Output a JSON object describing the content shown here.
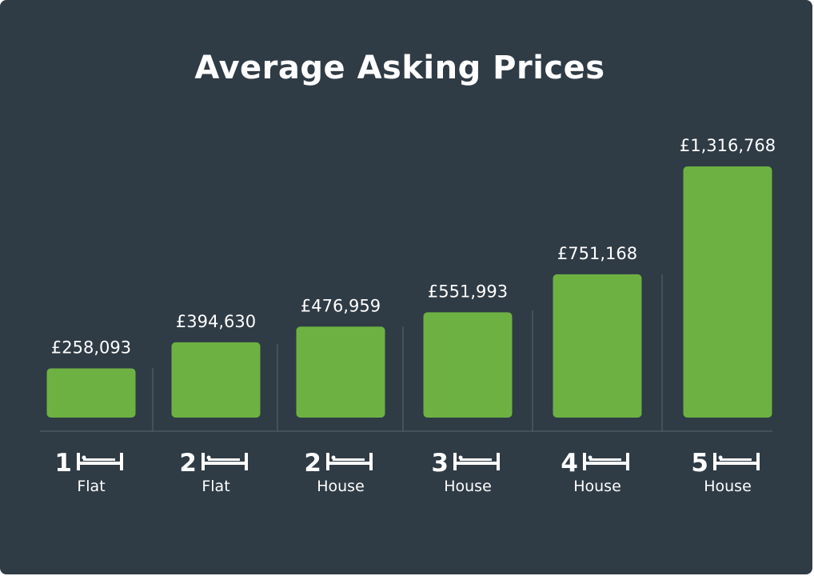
{
  "title": "Average Asking Prices",
  "colors": {
    "background": "#2f3b45",
    "bar": "#6db143",
    "divider": "#5a6670",
    "text": "#ffffff"
  },
  "icon": "bed-icon",
  "chart_data": {
    "type": "bar",
    "title": "Average Asking Prices",
    "categories": [
      "1 Flat",
      "2 Flat",
      "2 House",
      "3 House",
      "4 House",
      "5 House"
    ],
    "bedrooms": [
      "1",
      "2",
      "2",
      "3",
      "4",
      "5"
    ],
    "property_types": [
      "Flat",
      "Flat",
      "House",
      "House",
      "House",
      "House"
    ],
    "values": [
      258093,
      394630,
      476959,
      551993,
      751168,
      1316768
    ],
    "value_labels": [
      "£258,093",
      "£394,630",
      "£476,959",
      "£551,993",
      "£751,168",
      "£1,316,768"
    ],
    "grid": false,
    "legend": "none"
  }
}
